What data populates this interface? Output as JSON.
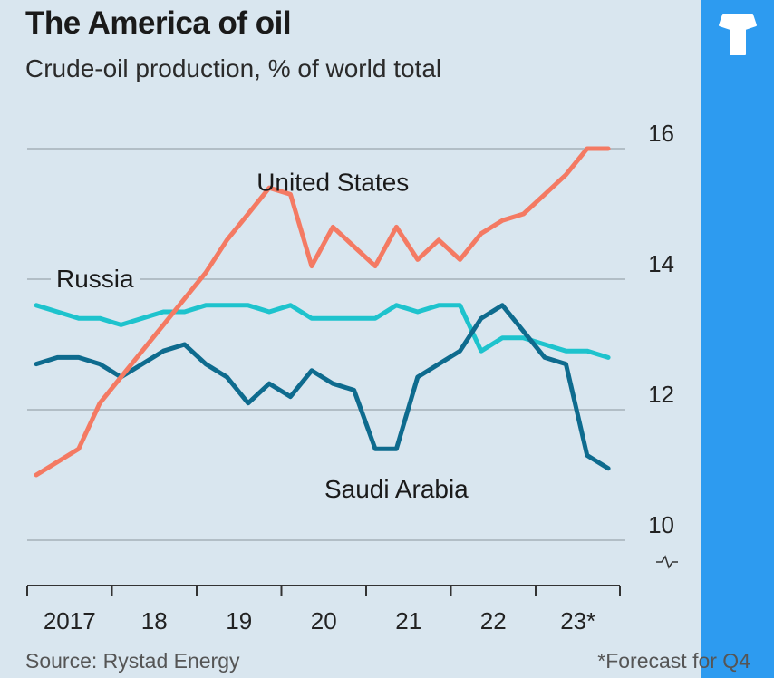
{
  "header": {
    "title": "The America of oil",
    "subtitle": "Crude-oil production, % of world total"
  },
  "footer": {
    "source": "Source: Rystad Energy",
    "footnote": "*Forecast for Q4"
  },
  "colors": {
    "background": "#d9e6ef",
    "side_panel": "#2d9bf0",
    "united_states": "#f47a63",
    "russia": "#1ec3cd",
    "saudi_arabia": "#0e6b8e",
    "gridline": "#9aa6ae"
  },
  "side_panel": {
    "icon": "tshirt-logo-icon"
  },
  "chart_data": {
    "type": "line",
    "title": "The America of oil",
    "subtitle": "Crude-oil production, % of world total",
    "xlabel": "",
    "ylabel": "",
    "x_tick_labels": [
      "2017",
      "18",
      "19",
      "20",
      "21",
      "22",
      "23*"
    ],
    "y_ticks": [
      10,
      12,
      14,
      16
    ],
    "ylim": [
      9.8,
      16.2
    ],
    "y_axis_break": true,
    "y_axis_side": "right",
    "grid": "horizontal",
    "legend": "inline labels",
    "x": [
      2017.0,
      2017.25,
      2017.5,
      2017.75,
      2018.0,
      2018.25,
      2018.5,
      2018.75,
      2019.0,
      2019.25,
      2019.5,
      2019.75,
      2020.0,
      2020.25,
      2020.5,
      2020.75,
      2021.0,
      2021.25,
      2021.5,
      2021.75,
      2022.0,
      2022.25,
      2022.5,
      2022.75,
      2023.0,
      2023.25,
      2023.5,
      2023.75
    ],
    "series": [
      {
        "name": "United States",
        "label_position": "above",
        "values": [
          11.0,
          11.2,
          11.4,
          12.1,
          12.5,
          12.9,
          13.3,
          13.7,
          14.1,
          14.6,
          15.0,
          15.4,
          15.3,
          14.2,
          14.8,
          14.5,
          14.2,
          14.8,
          14.3,
          14.6,
          14.3,
          14.7,
          14.9,
          15.0,
          15.3,
          15.6,
          16.0,
          16.0
        ]
      },
      {
        "name": "Russia",
        "label_position": "left",
        "values": [
          13.6,
          13.5,
          13.4,
          13.4,
          13.3,
          13.4,
          13.5,
          13.5,
          13.6,
          13.6,
          13.6,
          13.5,
          13.6,
          13.4,
          13.4,
          13.4,
          13.4,
          13.6,
          13.5,
          13.6,
          13.6,
          12.9,
          13.1,
          13.1,
          13.0,
          12.9,
          12.9,
          12.8
        ]
      },
      {
        "name": "Saudi Arabia",
        "label_position": "below",
        "values": [
          12.7,
          12.8,
          12.8,
          12.7,
          12.5,
          12.7,
          12.9,
          13.0,
          12.7,
          12.5,
          12.1,
          12.4,
          12.2,
          12.6,
          12.4,
          12.3,
          11.4,
          11.4,
          12.5,
          12.7,
          12.9,
          13.4,
          13.6,
          13.2,
          12.8,
          12.7,
          11.3,
          11.1
        ]
      }
    ]
  }
}
